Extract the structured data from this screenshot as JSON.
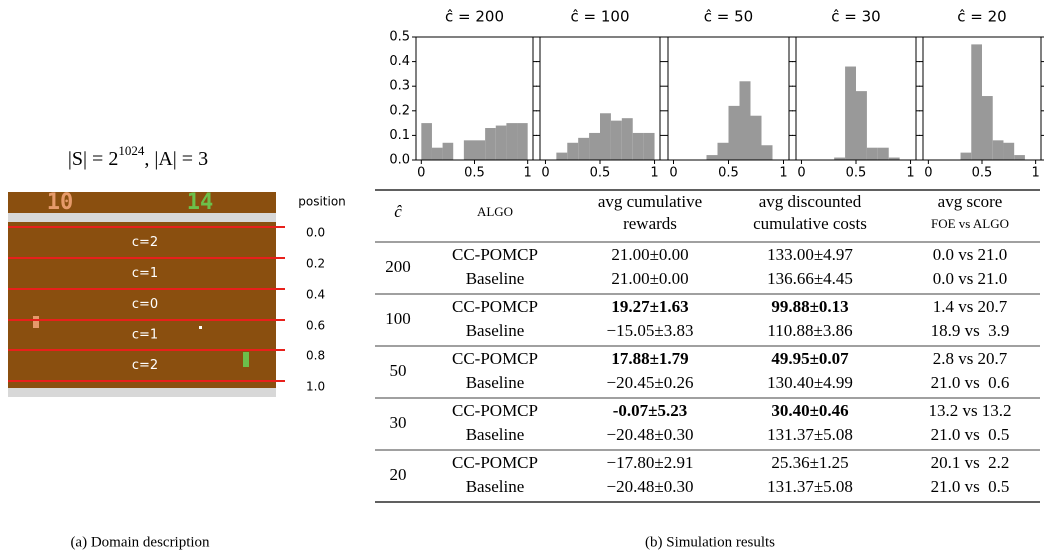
{
  "domain": {
    "formula": {
      "base": "|S| = 2",
      "exponent": "1024",
      "rest": ", |A| = 3"
    },
    "scores": [
      "10",
      "14"
    ],
    "position_header": "position",
    "positions": [
      "0.0",
      "0.2",
      "0.4",
      "0.6",
      "0.8",
      "1.0"
    ],
    "lanes": [
      "c=2",
      "c=1",
      "c=0",
      "c=1",
      "c=2"
    ],
    "caption": "(a) Domain description"
  },
  "chart_data": [
    {
      "type": "histogram",
      "title": "ĉ = 200",
      "color": "#999999",
      "bins": [
        0,
        0.1,
        0.2,
        0.3,
        0.4,
        0.5,
        0.6,
        0.7,
        0.8,
        0.9,
        1.0
      ],
      "values": [
        0.15,
        0.05,
        0.07,
        0.0,
        0.08,
        0.08,
        0.13,
        0.14,
        0.15,
        0.15
      ],
      "xlim": [
        -0.05,
        1.05
      ],
      "ylim": [
        0,
        0.5
      ],
      "xticks": [
        0,
        0.5,
        1
      ],
      "yticks": [
        {
          "value": 0,
          "label": "0.0"
        },
        {
          "value": 0.1,
          "label": "0.1"
        },
        {
          "value": 0.2,
          "label": "0.2"
        },
        {
          "value": 0.3,
          "label": "0.3"
        },
        {
          "value": 0.4,
          "label": "0.4"
        },
        {
          "value": 0.5,
          "label": "0.5"
        }
      ]
    },
    {
      "type": "histogram",
      "title": "ĉ = 100",
      "color": "#999999",
      "bins": [
        0,
        0.1,
        0.2,
        0.3,
        0.4,
        0.5,
        0.6,
        0.7,
        0.8,
        0.9,
        1.0
      ],
      "values": [
        0.0,
        0.03,
        0.07,
        0.09,
        0.11,
        0.19,
        0.16,
        0.17,
        0.11,
        0.11
      ],
      "xlim": [
        -0.05,
        1.05
      ],
      "ylim": [
        0,
        0.5
      ],
      "xticks": [
        0,
        0.5,
        1
      ]
    },
    {
      "type": "histogram",
      "title": "ĉ = 50",
      "color": "#999999",
      "bins": [
        0,
        0.1,
        0.2,
        0.3,
        0.4,
        0.5,
        0.6,
        0.7,
        0.8,
        0.9,
        1.0
      ],
      "values": [
        0.0,
        0.0,
        0.0,
        0.02,
        0.07,
        0.22,
        0.32,
        0.18,
        0.06,
        0.0
      ],
      "xlim": [
        -0.05,
        1.05
      ],
      "ylim": [
        0,
        0.5
      ],
      "xticks": [
        0,
        0.5,
        1
      ]
    },
    {
      "type": "histogram",
      "title": "ĉ = 30",
      "color": "#999999",
      "bins": [
        0,
        0.1,
        0.2,
        0.3,
        0.4,
        0.5,
        0.6,
        0.7,
        0.8,
        0.9,
        1.0
      ],
      "values": [
        0.0,
        0.0,
        0.0,
        0.01,
        0.38,
        0.28,
        0.05,
        0.05,
        0.01,
        0.0
      ],
      "xlim": [
        -0.05,
        1.05
      ],
      "ylim": [
        0,
        0.5
      ],
      "xticks": [
        0,
        0.5,
        1
      ]
    },
    {
      "type": "histogram",
      "title": "ĉ = 20",
      "color": "#999999",
      "bins": [
        0,
        0.1,
        0.2,
        0.3,
        0.4,
        0.5,
        0.6,
        0.7,
        0.8,
        0.9,
        1.0
      ],
      "values": [
        0.0,
        0.0,
        0.0,
        0.03,
        0.47,
        0.26,
        0.08,
        0.07,
        0.02,
        0.0
      ],
      "xlim": [
        -0.05,
        1.05
      ],
      "ylim": [
        0,
        0.5
      ],
      "xticks": [
        0,
        0.5,
        1
      ]
    }
  ],
  "table": {
    "headers": [
      [
        "ĉ"
      ],
      [
        "ALGO"
      ],
      [
        "avg cumulative",
        "rewards"
      ],
      [
        "avg discounted",
        "cumulative costs"
      ],
      [
        "avg score",
        "FOE vs ALGO"
      ]
    ],
    "groups": [
      {
        "c": "200",
        "rows": [
          {
            "cells": [
              "CC-POMCP",
              "21.00±0.00",
              "133.00±4.97",
              "0.0 vs 21.0"
            ],
            "bold": []
          },
          {
            "cells": [
              "Baseline",
              "21.00±0.00",
              "136.66±4.45",
              "0.0 vs 21.0"
            ],
            "bold": []
          }
        ]
      },
      {
        "c": "100",
        "rows": [
          {
            "cells": [
              "CC-POMCP",
              "19.27±1.63",
              "99.88±0.13",
              "1.4 vs 20.7"
            ],
            "bold": [
              1,
              2
            ]
          },
          {
            "cells": [
              "Baseline",
              "−15.05±3.83",
              "110.88±3.86",
              "18.9 vs  3.9"
            ],
            "bold": []
          }
        ]
      },
      {
        "c": "50",
        "rows": [
          {
            "cells": [
              "CC-POMCP",
              "17.88±1.79",
              "49.95±0.07",
              "2.8 vs 20.7"
            ],
            "bold": [
              1,
              2
            ]
          },
          {
            "cells": [
              "Baseline",
              "−20.45±0.26",
              "130.40±4.99",
              "21.0 vs  0.6"
            ],
            "bold": []
          }
        ]
      },
      {
        "c": "30",
        "rows": [
          {
            "cells": [
              "CC-POMCP",
              "-0.07±5.23",
              "30.40±0.46",
              "13.2 vs 13.2"
            ],
            "bold": [
              1,
              2
            ]
          },
          {
            "cells": [
              "Baseline",
              "−20.48±0.30",
              "131.37±5.08",
              "21.0 vs  0.5"
            ],
            "bold": []
          }
        ]
      },
      {
        "c": "20",
        "rows": [
          {
            "cells": [
              "CC-POMCP",
              "−17.80±2.91",
              "25.36±1.25",
              "20.1 vs  2.2"
            ],
            "bold": []
          },
          {
            "cells": [
              "Baseline",
              "−20.48±0.30",
              "131.37±5.08",
              "21.0 vs  0.5"
            ],
            "bold": []
          }
        ]
      }
    ],
    "caption": "(b) Simulation results"
  }
}
